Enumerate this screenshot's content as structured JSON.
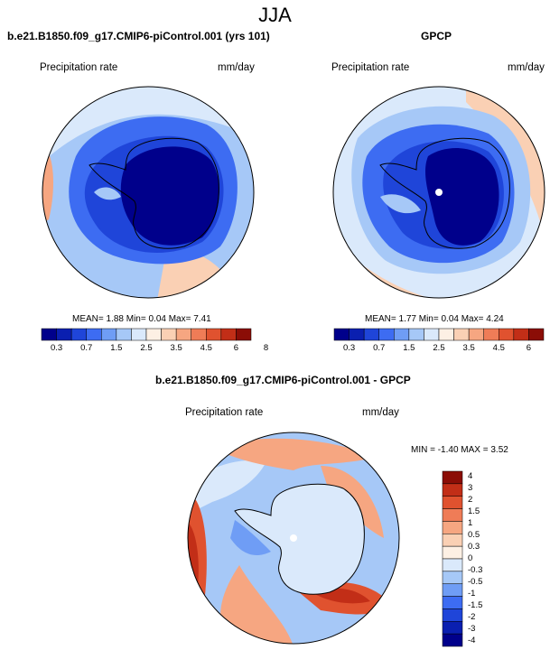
{
  "title": "JJA",
  "panels": {
    "model": {
      "title": "b.e21.B1850.f09_g17.CMIP6-piControl.001 (yrs 101)",
      "variable": "Precipitation rate",
      "units": "mm/day",
      "stats": "MEAN=  1.88  Min=  0.04  Max=  7.41"
    },
    "obs": {
      "title": "GPCP",
      "variable": "Precipitation rate",
      "units": "mm/day",
      "stats": "MEAN=  1.77  Min=  0.04  Max=  4.24"
    },
    "diff": {
      "title": "b.e21.B1850.f09_g17.CMIP6-piControl.001 - GPCP",
      "variable": "Precipitation rate",
      "units": "mm/day",
      "stats": "MIN = -1.40 MAX =  3.52"
    }
  },
  "colorbar_abs": {
    "colors": [
      "#00008b",
      "#0a1fb0",
      "#1f45d9",
      "#3d6cf2",
      "#6f9df5",
      "#a6c8f7",
      "#dae9fb",
      "#fdf0e4",
      "#fad0b4",
      "#f6a681",
      "#ef7c57",
      "#e0522f",
      "#c22e17",
      "#8b0d06"
    ],
    "labels": [
      "0.3",
      "0.7",
      "1.5",
      "2.5",
      "3.5",
      "4.5",
      "6",
      "8"
    ]
  },
  "colorbar_diff": {
    "colors": [
      "#8b0d06",
      "#c22e17",
      "#e0522f",
      "#ef7c57",
      "#f6a681",
      "#fad0b4",
      "#fdf0e4",
      "#dae9fb",
      "#a6c8f7",
      "#6f9df5",
      "#3d6cf2",
      "#1f45d9",
      "#0a1fb0",
      "#00008b"
    ],
    "labels": [
      "4",
      "3",
      "2",
      "1.5",
      "1",
      "0.5",
      "0.3",
      "0",
      "-0.3",
      "-0.5",
      "-1",
      "-1.5",
      "-2",
      "-3",
      "-4"
    ]
  }
}
